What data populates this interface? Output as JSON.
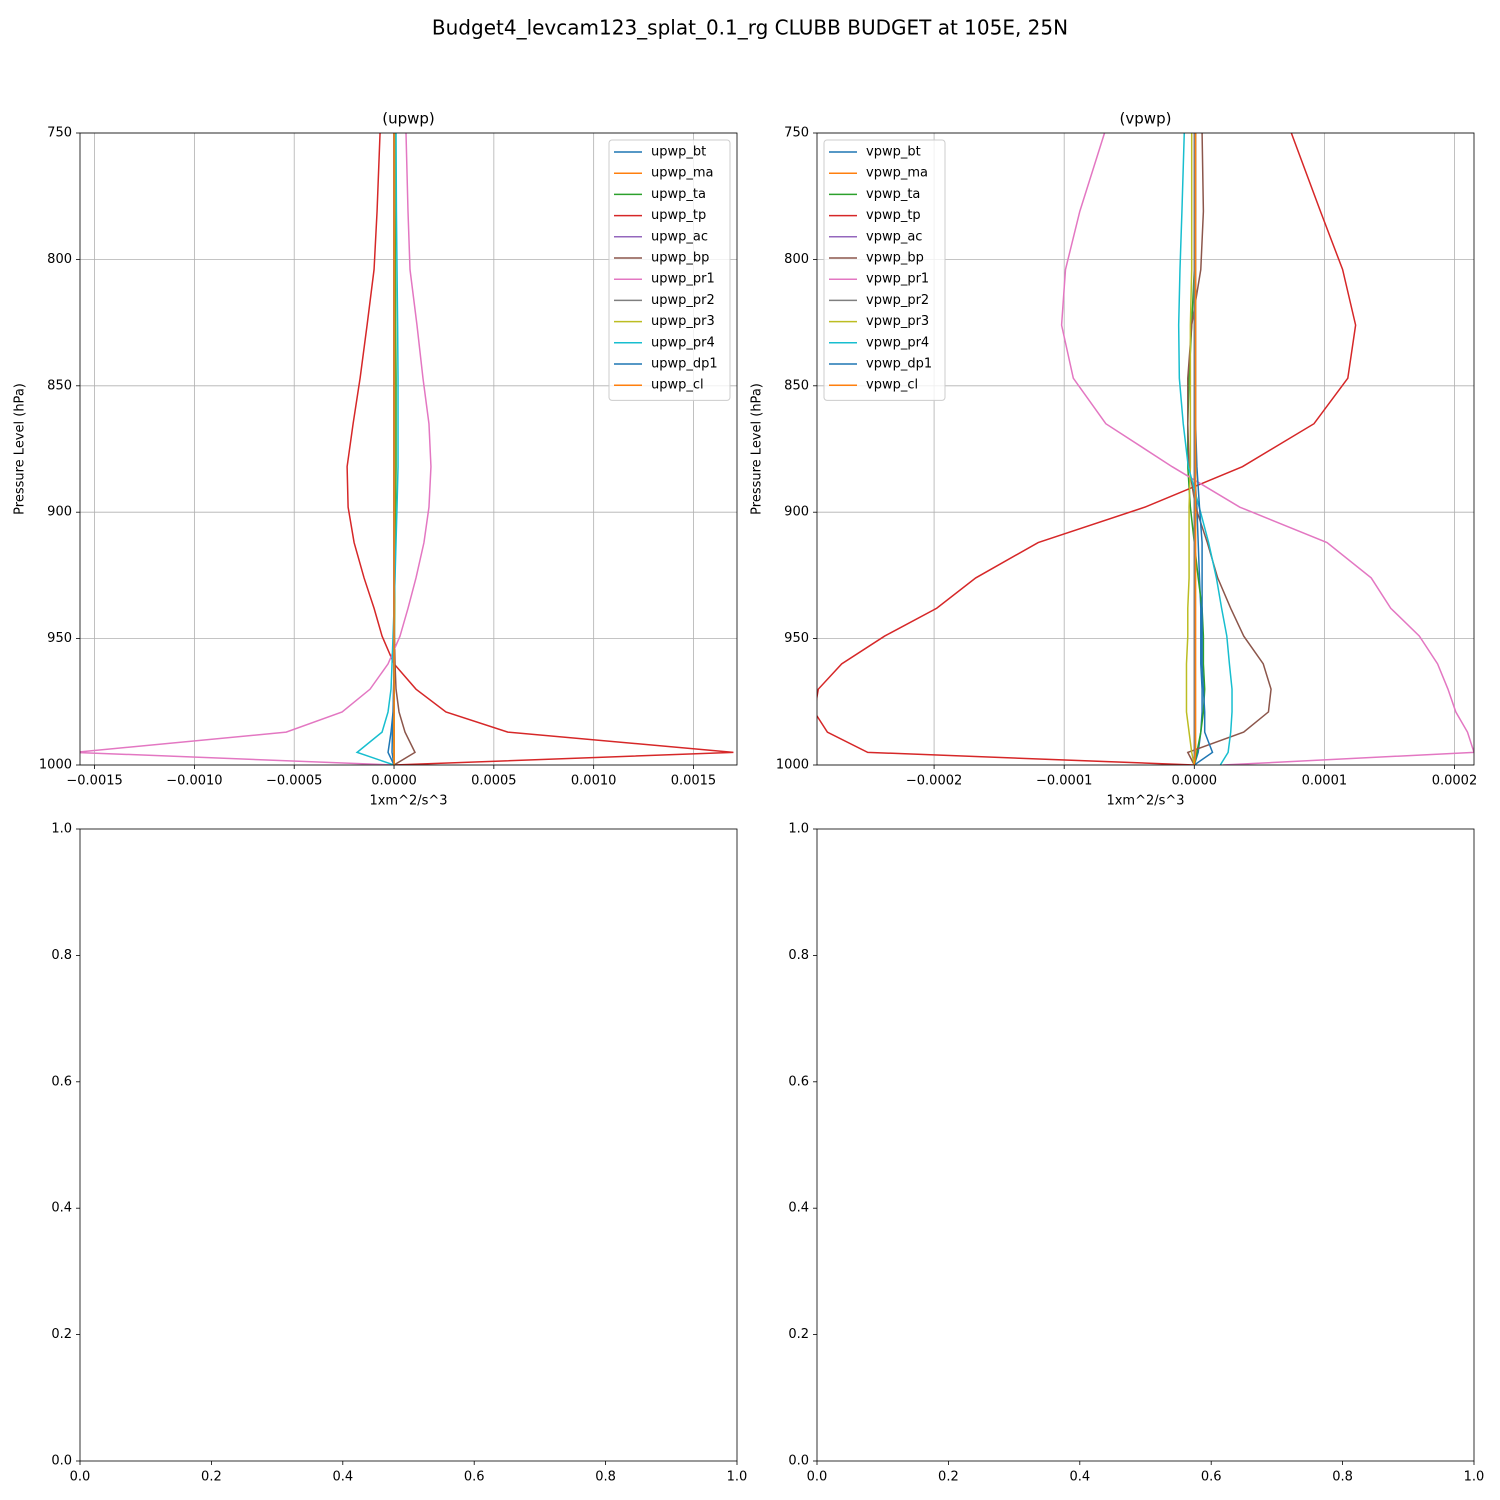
{
  "title": "Budget4_levcam123_splat_0.1_rg CLUBB BUDGET at 105E, 25N",
  "chart_data": [
    {
      "type": "line",
      "title": "(upwp)",
      "xlabel": "1xm^2/s^3",
      "ylabel": "Pressure Level (hPa)",
      "grid": true,
      "legend": "upper right",
      "xlim": [
        -0.001573,
        0.001718
      ],
      "xticks": [
        {
          "value": -0.0015,
          "label": "−0.0015"
        },
        {
          "value": -0.001,
          "label": "−0.0010"
        },
        {
          "value": -0.0005,
          "label": "−0.0005"
        },
        {
          "value": 0,
          "label": "0.0000"
        },
        0.0005,
        {
          "value": 0.001,
          "label": "0.0010"
        },
        0.0015
      ],
      "ylim": [
        1000,
        750
      ],
      "yticks": [
        750,
        800,
        850,
        900,
        950,
        1000
      ],
      "y": [
        750,
        781,
        804,
        826,
        847,
        865,
        882,
        898,
        912,
        926,
        938,
        949,
        960,
        970,
        979,
        987,
        995,
        1000
      ],
      "series": [
        {
          "name": "upwp_bt",
          "color": "#1f77b4",
          "values": [
            2e-06,
            2e-06,
            2e-06,
            2e-06,
            2e-06,
            2e-06,
            2e-06,
            2e-06,
            2e-06,
            2e-06,
            2e-06,
            1e-06,
            0,
            -2e-06,
            -4e-06,
            -8e-06,
            -1e-05,
            0
          ]
        },
        {
          "name": "upwp_ma",
          "color": "#ff7f0e",
          "values": [
            0,
            0,
            0,
            0,
            0,
            0,
            0,
            0,
            0,
            0,
            0,
            0,
            0,
            0,
            0,
            0,
            0,
            0
          ]
        },
        {
          "name": "upwp_ta",
          "color": "#2ca02c",
          "values": [
            5e-06,
            6e-06,
            7e-06,
            8e-06,
            1e-05,
            1e-05,
            1e-05,
            8e-06,
            6e-06,
            4e-06,
            3e-06,
            2e-06,
            1e-06,
            1e-06,
            0,
            0,
            0,
            0
          ]
        },
        {
          "name": "upwp_tp",
          "color": "#d62728",
          "values": [
            -7e-05,
            -8.5e-05,
            -0.0001,
            -0.000135,
            -0.00017,
            -0.000205,
            -0.000235,
            -0.00023,
            -0.0002,
            -0.00015,
            -0.0001,
            -6e-05,
            0,
            0.00011,
            0.00026,
            0.00057,
            0.0017,
            0
          ]
        },
        {
          "name": "upwp_ac",
          "color": "#9467bd",
          "values": [
            0,
            0,
            0,
            0,
            0,
            0,
            0,
            0,
            0,
            0,
            0,
            0,
            0,
            0,
            0,
            0,
            0,
            0
          ]
        },
        {
          "name": "upwp_bp",
          "color": "#8c564b",
          "values": [
            0,
            0,
            0,
            0,
            0,
            0,
            0,
            0,
            0,
            0,
            0,
            2e-06,
            5e-06,
            1e-05,
            2.5e-05,
            5.5e-05,
            0.000105,
            0
          ]
        },
        {
          "name": "upwp_pr1",
          "color": "#e377c2",
          "values": [
            6e-05,
            7e-05,
            8e-05,
            0.000115,
            0.000145,
            0.000175,
            0.000185,
            0.000175,
            0.00015,
            0.00011,
            7e-05,
            3e-05,
            -3e-05,
            -0.00012,
            -0.00026,
            -0.00054,
            -0.0016,
            0
          ]
        },
        {
          "name": "upwp_pr2",
          "color": "#7f7f7f",
          "values": [
            0,
            0,
            0,
            0,
            0,
            0,
            0,
            0,
            0,
            0,
            0,
            0,
            0,
            0,
            0,
            0,
            0,
            0
          ]
        },
        {
          "name": "upwp_pr3",
          "color": "#bcbd22",
          "values": [
            3e-06,
            3e-06,
            3e-06,
            3e-06,
            3e-06,
            3e-06,
            3e-06,
            3e-06,
            2e-06,
            2e-06,
            2e-06,
            1e-06,
            1e-06,
            0,
            0,
            0,
            0,
            0
          ]
        },
        {
          "name": "upwp_pr4",
          "color": "#17becf",
          "values": [
            1e-05,
            1.2e-05,
            1.5e-05,
            1.8e-05,
            2e-05,
            2e-05,
            2e-05,
            1.5e-05,
            1e-05,
            5e-06,
            0,
            -5e-06,
            -1e-05,
            -1.5e-05,
            -3e-05,
            -6e-05,
            -0.000185,
            0
          ]
        },
        {
          "name": "upwp_dp1",
          "color": "#1f77b4",
          "values": [
            0,
            0,
            0,
            0,
            0,
            0,
            0,
            0,
            0,
            0,
            0,
            0,
            0,
            -2e-06,
            -5e-06,
            -1.5e-05,
            -3e-05,
            0
          ]
        },
        {
          "name": "upwp_cl",
          "color": "#ff7f0e",
          "values": [
            0,
            0,
            0,
            0,
            0,
            0,
            0,
            0,
            0,
            0,
            0,
            0,
            0,
            0,
            0,
            0,
            0,
            0
          ]
        }
      ]
    },
    {
      "type": "line",
      "title": "(vpwp)",
      "xlabel": "1xm^2/s^3",
      "ylabel": "Pressure Level (hPa)",
      "grid": true,
      "legend": "upper left",
      "xlim": [
        -0.00029,
        0.000215
      ],
      "xticks": [
        {
          "value": -0.0002,
          "label": "−0.0002"
        },
        {
          "value": -0.0001,
          "label": "−0.0001"
        },
        {
          "value": 0,
          "label": "0.0000"
        },
        0.0001,
        0.0002
      ],
      "ylim": [
        1000,
        750
      ],
      "yticks": [
        750,
        800,
        850,
        900,
        950,
        1000
      ],
      "y": [
        750,
        781,
        804,
        826,
        847,
        865,
        882,
        898,
        912,
        926,
        938,
        949,
        960,
        970,
        979,
        987,
        995,
        1000
      ],
      "series": [
        {
          "name": "vpwp_bt",
          "color": "#1f77b4",
          "values": [
            0,
            0,
            0,
            0,
            0,
            0,
            0,
            2e-06,
            3e-06,
            4e-06,
            5e-06,
            5e-06,
            5e-06,
            6e-06,
            6e-06,
            5e-06,
            3e-06,
            0
          ]
        },
        {
          "name": "vpwp_ma",
          "color": "#ff7f0e",
          "values": [
            0,
            0,
            0,
            0,
            0,
            0,
            0,
            0,
            0,
            0,
            0,
            0,
            0,
            0,
            0,
            0,
            0,
            0
          ]
        },
        {
          "name": "vpwp_ta",
          "color": "#2ca02c",
          "values": [
            1e-06,
            1e-06,
            0,
            -2e-06,
            -4e-06,
            -5e-06,
            -5e-06,
            -3e-06,
            0,
            3e-06,
            6e-06,
            7e-06,
            7e-06,
            8e-06,
            7e-06,
            5e-06,
            2e-06,
            0
          ]
        },
        {
          "name": "vpwp_tp",
          "color": "#d62728",
          "values": [
            7.46e-05,
            9.7e-05,
            0.000114,
            0.000124,
            0.000118,
            9.2e-05,
            3.7e-05,
            -3.8e-05,
            -0.00012,
            -0.000168,
            -0.000198,
            -0.000238,
            -0.000271,
            -0.000289,
            -0.000292,
            -0.000282,
            -0.000251,
            0
          ]
        },
        {
          "name": "vpwp_ac",
          "color": "#9467bd",
          "values": [
            0,
            0,
            0,
            0,
            0,
            0,
            0,
            0,
            0,
            0,
            0,
            0,
            0,
            0,
            0,
            0,
            0,
            0
          ]
        },
        {
          "name": "vpwp_bp",
          "color": "#8c564b",
          "values": [
            6e-06,
            7e-06,
            5e-06,
            -2e-06,
            -5e-06,
            -5e-06,
            -4e-06,
            1e-06,
            1e-05,
            1.8e-05,
            2.8e-05,
            3.8e-05,
            5.3e-05,
            5.9e-05,
            5.7e-05,
            3.8e-05,
            -5e-06,
            0
          ]
        },
        {
          "name": "vpwp_pr1",
          "color": "#e377c2",
          "values": [
            -6.9e-05,
            -8.8e-05,
            -9.9e-05,
            -0.000102,
            -9.3e-05,
            -6.8e-05,
            -1.7e-05,
            3.5e-05,
            0.000102,
            0.000136,
            0.000151,
            0.000173,
            0.000187,
            0.000195,
            0.000201,
            0.00021,
            0.000215,
            2.2e-05
          ]
        },
        {
          "name": "vpwp_pr2",
          "color": "#7f7f7f",
          "values": [
            0,
            0,
            0,
            0,
            0,
            0,
            0,
            0,
            0,
            0,
            0,
            0,
            0,
            0,
            0,
            0,
            0,
            0
          ]
        },
        {
          "name": "vpwp_pr3",
          "color": "#bcbd22",
          "values": [
            -2e-06,
            -2e-06,
            -2e-06,
            -3e-06,
            -3e-06,
            -3e-06,
            -3e-06,
            -4e-06,
            -4e-06,
            -4e-06,
            -5e-06,
            -5e-06,
            -6e-06,
            -6e-06,
            -6e-06,
            -4e-06,
            -2e-06,
            0
          ]
        },
        {
          "name": "vpwp_pr4",
          "color": "#17becf",
          "values": [
            -7.7e-06,
            -9.5e-06,
            -1.1e-05,
            -1.2e-05,
            -1.15e-05,
            -8.5e-06,
            -4.6e-06,
            3.8e-06,
            1.1e-05,
            1.7e-05,
            2.1e-05,
            2.5e-05,
            2.7e-05,
            2.9e-05,
            2.9e-05,
            2.8e-05,
            2.6e-05,
            2e-05
          ]
        },
        {
          "name": "vpwp_dp1",
          "color": "#1f77b4",
          "values": [
            1e-06,
            1e-06,
            1e-06,
            1e-06,
            1e-06,
            1e-06,
            2e-06,
            4e-06,
            6e-06,
            6e-06,
            6e-06,
            6e-06,
            6e-06,
            7e-06,
            8e-06,
            8e-06,
            1.4e-05,
            0
          ]
        },
        {
          "name": "vpwp_cl",
          "color": "#ff7f0e",
          "values": [
            1e-06,
            1e-06,
            1e-06,
            1e-06,
            1e-06,
            1e-06,
            1e-06,
            1e-06,
            1e-06,
            1e-06,
            1e-06,
            1e-06,
            1e-06,
            1e-06,
            1e-06,
            1e-06,
            1e-06,
            0
          ]
        }
      ]
    },
    {
      "type": "line",
      "grid": false,
      "xlim": [
        0,
        1
      ],
      "ylim": [
        0,
        1
      ],
      "xticks": [
        {
          "value": 0,
          "label": "0.0"
        },
        0.2,
        0.4,
        0.6,
        0.8,
        {
          "value": 1,
          "label": "1.0"
        }
      ],
      "yticks": [
        {
          "value": 0,
          "label": "0.0"
        },
        0.2,
        0.4,
        0.6,
        0.8,
        {
          "value": 1,
          "label": "1.0"
        }
      ]
    },
    {
      "type": "line",
      "grid": false,
      "xlim": [
        0,
        1
      ],
      "ylim": [
        0,
        1
      ],
      "xticks": [
        {
          "value": 0,
          "label": "0.0"
        },
        0.2,
        0.4,
        0.6,
        0.8,
        {
          "value": 1,
          "label": "1.0"
        }
      ],
      "yticks": [
        {
          "value": 0,
          "label": "0.0"
        },
        0.2,
        0.4,
        0.6,
        0.8,
        {
          "value": 1,
          "label": "1.0"
        }
      ]
    }
  ]
}
